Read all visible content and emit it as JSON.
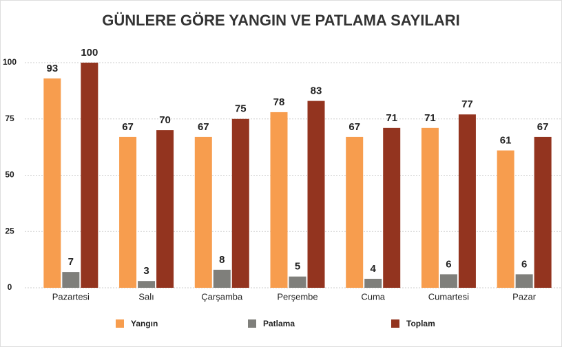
{
  "chart_data": {
    "type": "bar",
    "title": "GÜNLERE GÖRE YANGIN VE PATLAMA SAYILARI",
    "categories": [
      "Pazartesi",
      "Salı",
      "Çarşamba",
      "Perşembe",
      "Cuma",
      "Cumartesi",
      "Pazar"
    ],
    "series": [
      {
        "name": "Yangın",
        "color": "#f79d4e",
        "values": [
          93,
          67,
          67,
          78,
          67,
          71,
          61
        ]
      },
      {
        "name": "Patlama",
        "color": "#7f7f7b",
        "values": [
          7,
          3,
          8,
          5,
          4,
          6,
          6
        ]
      },
      {
        "name": "Toplam",
        "color": "#93341f",
        "values": [
          100,
          70,
          75,
          83,
          71,
          77,
          67
        ]
      }
    ],
    "ylim": [
      0,
      100
    ],
    "yticks": [
      0,
      25,
      50,
      75,
      100
    ],
    "grid": true
  }
}
